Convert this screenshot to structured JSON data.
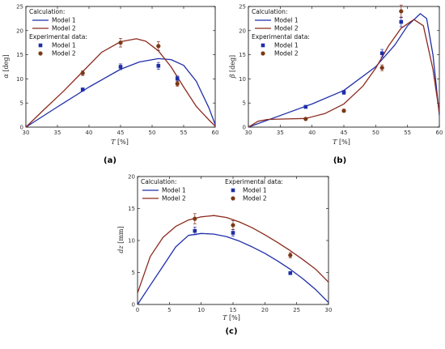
{
  "colors": {
    "model1": "#1f2fa8",
    "model2": "#8b2a1f",
    "exp2_fill": "#7a3a14"
  },
  "legend": {
    "calc_title": "Calculation:",
    "exp_title": "Experimental data:",
    "model1": "Model 1",
    "model2": "Model 2"
  },
  "chart_data": [
    {
      "id": "a",
      "type": "line",
      "panel_label": "(a)",
      "xlabel_var": "T",
      "xlabel_unit": "[%]",
      "ylabel_var": "α",
      "ylabel_unit": "[deg]",
      "xlim": [
        30,
        60
      ],
      "ylim": [
        0,
        25
      ],
      "xticks": [
        30,
        35,
        40,
        45,
        50,
        55,
        60
      ],
      "yticks": [
        0,
        5,
        10,
        15,
        20,
        25
      ],
      "legend_placement": "top-left",
      "legend_layout": "stacked",
      "series": [
        {
          "name": "Model 1",
          "role": "calculation",
          "x": [
            30,
            35,
            40,
            45,
            48,
            51,
            53,
            55,
            57,
            59,
            60
          ],
          "y": [
            0,
            4.2,
            8.3,
            12.0,
            13.5,
            14.2,
            14.0,
            12.8,
            9.5,
            4.0,
            0.5
          ]
        },
        {
          "name": "Model 2",
          "role": "calculation",
          "x": [
            30,
            33,
            36,
            39,
            42,
            45,
            47.5,
            49,
            51,
            53,
            55,
            57,
            59,
            60
          ],
          "y": [
            0,
            3.8,
            7.5,
            11.5,
            15.5,
            17.7,
            18.3,
            17.8,
            15.8,
            12.5,
            8.3,
            4.3,
            1.5,
            0.2
          ]
        },
        {
          "name": "Model 1",
          "role": "experimental",
          "x": [
            39,
            45,
            51,
            54
          ],
          "y": [
            7.8,
            12.5,
            12.7,
            10.1
          ],
          "err": [
            0.3,
            0.6,
            0.7,
            0.5
          ]
        },
        {
          "name": "Model 2",
          "role": "experimental",
          "x": [
            39,
            45,
            51,
            54
          ],
          "y": [
            11.2,
            17.5,
            16.8,
            9.0
          ],
          "err": [
            0.5,
            0.9,
            0.9,
            0.5
          ]
        }
      ]
    },
    {
      "id": "b",
      "type": "line",
      "panel_label": "(b)",
      "xlabel_var": "T",
      "xlabel_unit": "[%]",
      "ylabel_var": "β",
      "ylabel_unit": "[deg]",
      "xlim": [
        30,
        60
      ],
      "ylim": [
        0,
        25
      ],
      "xticks": [
        30,
        35,
        40,
        45,
        50,
        55,
        60
      ],
      "yticks": [
        0,
        5,
        10,
        15,
        20,
        25
      ],
      "legend_placement": "top-left",
      "legend_layout": "stacked",
      "series": [
        {
          "name": "Model 1",
          "role": "calculation",
          "x": [
            30,
            35,
            40,
            45,
            50,
            53,
            55,
            57,
            58,
            59,
            60
          ],
          "y": [
            0,
            2.4,
            4.8,
            7.6,
            12.5,
            17.0,
            21.0,
            23.5,
            22.5,
            15.0,
            2.5
          ]
        },
        {
          "name": "Model 2",
          "role": "calculation",
          "x": [
            30,
            31.5,
            33,
            36,
            39,
            42,
            45,
            48,
            50,
            52,
            54,
            56,
            57.5,
            59,
            60
          ],
          "y": [
            0,
            1.2,
            1.6,
            1.7,
            1.8,
            2.8,
            4.8,
            8.5,
            12.2,
            16.8,
            20.5,
            22.3,
            21.0,
            12.0,
            3.0
          ]
        },
        {
          "name": "Model 1",
          "role": "experimental",
          "x": [
            39,
            45,
            51,
            54
          ],
          "y": [
            4.2,
            7.2,
            15.3,
            21.8
          ],
          "err": [
            0.3,
            0.4,
            0.8,
            1.0
          ]
        },
        {
          "name": "Model 2",
          "role": "experimental",
          "x": [
            39,
            45,
            51,
            54
          ],
          "y": [
            1.7,
            3.4,
            12.3,
            24.0
          ],
          "err": [
            0.2,
            0.3,
            0.6,
            1.3
          ]
        }
      ]
    },
    {
      "id": "c",
      "type": "line",
      "panel_label": "(c)",
      "xlabel_var": "T",
      "xlabel_unit": "[%]",
      "ylabel_var": "dz",
      "ylabel_unit": "[mm]",
      "xlim": [
        0,
        30
      ],
      "ylim": [
        0,
        20
      ],
      "xticks": [
        0,
        5,
        10,
        15,
        20,
        25,
        30
      ],
      "yticks": [
        0,
        5,
        10,
        15,
        20
      ],
      "legend_placement": "top",
      "legend_layout": "side-by-side",
      "series": [
        {
          "name": "Model 1",
          "role": "calculation",
          "x": [
            0,
            2,
            4,
            6,
            8,
            10,
            12,
            14,
            16,
            18,
            20,
            22,
            24,
            26,
            28,
            30
          ],
          "y": [
            0,
            3.0,
            6.0,
            9.0,
            10.8,
            11.1,
            11.0,
            10.6,
            9.9,
            9.0,
            8.0,
            6.8,
            5.5,
            4.0,
            2.3,
            0.3
          ]
        },
        {
          "name": "Model 2",
          "role": "calculation",
          "x": [
            0,
            2,
            4,
            6,
            8,
            10,
            12,
            14,
            16,
            18,
            20,
            22,
            24,
            26,
            28,
            30
          ],
          "y": [
            1.8,
            7.5,
            10.5,
            12.2,
            13.2,
            13.7,
            13.9,
            13.6,
            12.9,
            12.0,
            10.9,
            9.7,
            8.4,
            7.0,
            5.5,
            3.5
          ]
        },
        {
          "name": "Model 1",
          "role": "experimental",
          "x": [
            9,
            15,
            24
          ],
          "y": [
            11.5,
            11.2,
            4.9
          ],
          "err": [
            0.6,
            0.5,
            0.2
          ]
        },
        {
          "name": "Model 2",
          "role": "experimental",
          "x": [
            9,
            15,
            24
          ],
          "y": [
            13.4,
            12.4,
            7.7
          ],
          "err": [
            0.8,
            0.7,
            0.4
          ]
        }
      ]
    }
  ]
}
